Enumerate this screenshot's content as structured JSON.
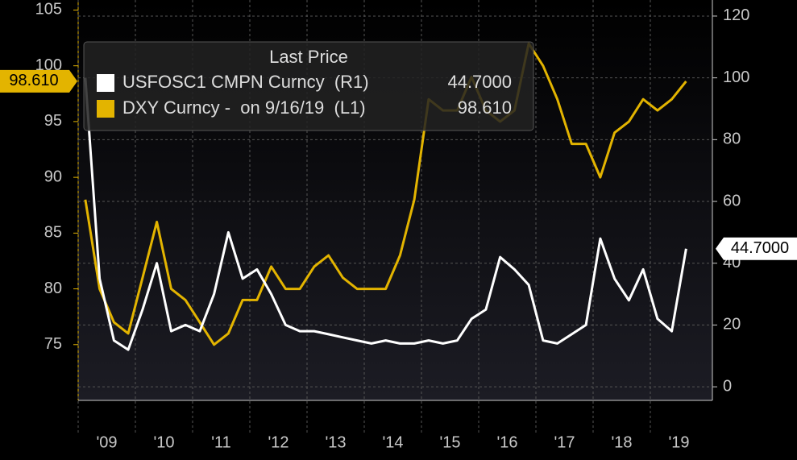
{
  "chart_data": {
    "type": "line",
    "legend_title": "Last Price",
    "categories": [
      null,
      "'09",
      null,
      null,
      null,
      "'10",
      null,
      null,
      null,
      "'11",
      null,
      null,
      null,
      "'12",
      null,
      null,
      null,
      "'13",
      null,
      null,
      null,
      "'14",
      null,
      null,
      null,
      "'15",
      null,
      null,
      null,
      "'16",
      null,
      null,
      null,
      "'17",
      null,
      null,
      null,
      "'18",
      null,
      null,
      null,
      "'19",
      null
    ],
    "series": [
      {
        "name": "USFOSC1 CMPN Curncy  (R1)",
        "last_label": "44.7000",
        "color": "#ffffff",
        "axis": "y2",
        "values": [
          100,
          35,
          15,
          12,
          25,
          40,
          18,
          20,
          18,
          30,
          50,
          35,
          38,
          30,
          20,
          18,
          18,
          17,
          16,
          15,
          14,
          15,
          14,
          14,
          15,
          14,
          15,
          22,
          25,
          42,
          38,
          33,
          15,
          14,
          17,
          20,
          48,
          35,
          28,
          38,
          22,
          18,
          44.7
        ]
      },
      {
        "name": "DXY Curncy -  on 9/16/19  (L1)",
        "last_label": "98.610",
        "color": "#e3b400",
        "values": [
          88,
          80,
          77,
          76,
          81,
          86,
          80,
          79,
          77,
          75,
          76,
          79,
          79,
          82,
          80,
          80,
          82,
          83,
          81,
          80,
          80,
          80,
          83,
          88,
          97,
          96,
          96,
          99,
          96,
          95,
          96,
          102,
          100,
          97,
          93,
          93,
          90,
          94,
          95,
          97,
          96,
          97,
          98.61
        ]
      }
    ],
    "ylim": [
      70,
      105.9
    ],
    "yticks": [
      75,
      80,
      85,
      90,
      95,
      100,
      105
    ],
    "y2lim": [
      -4.4,
      125.2
    ],
    "y2ticks": [
      0,
      20,
      40,
      60,
      80,
      100,
      120
    ],
    "grid": true
  }
}
